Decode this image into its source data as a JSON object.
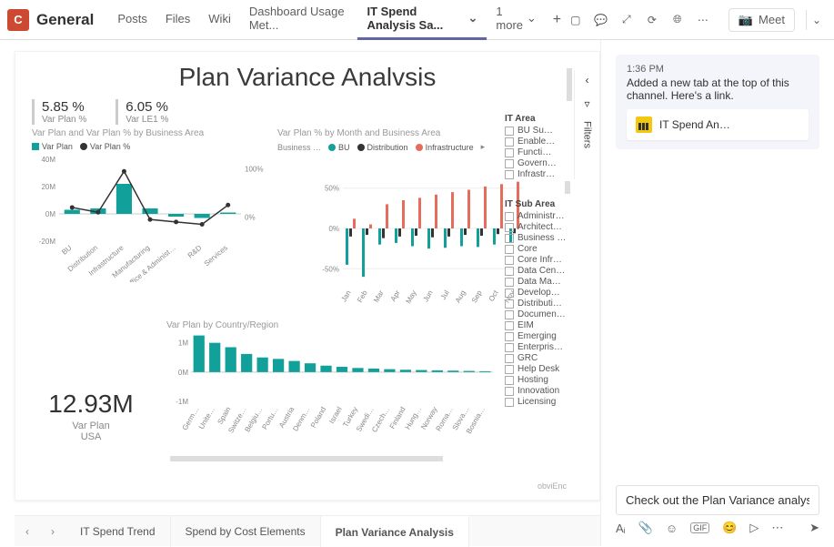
{
  "header": {
    "team_initial": "C",
    "channel": "General",
    "tabs": [
      "Posts",
      "Files",
      "Wiki",
      "Dashboard Usage Met...",
      "IT Spend Analysis Sa..."
    ],
    "active_tab_index": 4,
    "more_label": "1 more",
    "meet_label": "Meet"
  },
  "report": {
    "title": "Plan Variance Analvsis",
    "filters_label": "Filters",
    "kpis": [
      {
        "value": "5.85 %",
        "label": "Var Plan %"
      },
      {
        "value": "6.05 %",
        "label": "Var LE1 %"
      }
    ],
    "chart1": {
      "title": "Var Plan and Var Plan % by Business Area",
      "legend": [
        {
          "label": "Var Plan",
          "color": "#12a19a",
          "shape": "square"
        },
        {
          "label": "Var Plan %",
          "color": "#333333",
          "shape": "circle"
        }
      ],
      "y_left_ticks": [
        "40M",
        "20M",
        "0M",
        "-20M"
      ],
      "y_right_ticks": [
        "100%",
        "0%"
      ],
      "y_left_range": [
        -20,
        40
      ],
      "y_right_range": [
        -50,
        120
      ],
      "categories": [
        "BU",
        "Distribution",
        "Infrastructure",
        "Manufacturing",
        "Office & Administ…",
        "R&D",
        "Services"
      ],
      "bars": [
        3,
        4,
        22,
        4,
        -2,
        -3,
        1
      ],
      "line_pct": [
        20,
        10,
        95,
        -5,
        -10,
        -15,
        25
      ],
      "bar_color": "#12a19a",
      "line_color": "#333333"
    },
    "chart2": {
      "title": "Var Plan % by Month and Business Area",
      "legend_label": "Business …",
      "legend": [
        {
          "label": "BU",
          "color": "#12a19a"
        },
        {
          "label": "Distribution",
          "color": "#333333"
        },
        {
          "label": "Infrastructure",
          "color": "#e66c5c"
        }
      ],
      "y_ticks": [
        "50%",
        "0%",
        "-50%"
      ],
      "y_range": [
        -70,
        70
      ],
      "months": [
        "Jan",
        "Feb",
        "Mar",
        "Apr",
        "May",
        "Jun",
        "Jul",
        "Aug",
        "Sep",
        "Oct",
        "Nov"
      ],
      "series_bu": [
        -45,
        -60,
        -20,
        -18,
        -22,
        -25,
        -24,
        -22,
        -23,
        -20,
        -18
      ],
      "series_dist": [
        -10,
        -8,
        -12,
        -10,
        -9,
        -11,
        -10,
        -8,
        -9,
        -7,
        -6
      ],
      "series_infra": [
        12,
        5,
        30,
        35,
        38,
        42,
        45,
        48,
        52,
        55,
        58
      ],
      "bar_group_width": 4
    },
    "slicers": {
      "area_title": "IT Area",
      "areas": [
        "BU Su…",
        "Enable…",
        "Functi…",
        "Govern…",
        "Infrastr…"
      ],
      "sub_title": "IT Sub Area",
      "subs": [
        "Administr…",
        "Architect…",
        "Business …",
        "Core",
        "Core Infr…",
        "Data Cen…",
        "Data Ma…",
        "Develop…",
        "Distributi…",
        "Documen…",
        "EIM",
        "Emerging",
        "Enterpris…",
        "GRC",
        "Help Desk",
        "Hosting",
        "Innovation",
        "Licensing"
      ]
    },
    "bignum": {
      "value": "12.93M",
      "label": "Var Plan",
      "sub": "USA"
    },
    "chart3": {
      "title": "Var Plan by Country/Region",
      "y_ticks": [
        "1M",
        "0M",
        "-1M"
      ],
      "y_range": [
        -1,
        1.3
      ],
      "categories": [
        "Germ…",
        "Unite…",
        "Spain",
        "Switze…",
        "Belgiu…",
        "Portu…",
        "Austria",
        "Denm…",
        "Poland",
        "Israel",
        "Turkey",
        "Swedi…",
        "Czech…",
        "Finland",
        "Hung…",
        "Norway",
        "Roma…",
        "Slova…",
        "Bosnia…"
      ],
      "values": [
        1.25,
        1.0,
        0.85,
        0.62,
        0.5,
        0.45,
        0.38,
        0.3,
        0.22,
        0.18,
        0.14,
        0.12,
        0.1,
        0.08,
        0.07,
        0.06,
        0.05,
        0.04,
        0.03
      ],
      "bar_color": "#12a19a"
    },
    "bottom_tabs": [
      "IT Spend Trend",
      "Spend by Cost Elements",
      "Plan Variance Analysis"
    ],
    "bottom_active": 2,
    "watermark": "obviEnc"
  },
  "chat": {
    "time": "1:36 PM",
    "text": "Added a new tab at the top of this channel. Here's a link.",
    "card_label": "IT Spend An…",
    "compose_value": "Check out the Plan Variance analysis"
  },
  "colors": {
    "teal": "#12a19a",
    "red": "#e66c5c",
    "black": "#333333",
    "grid": "#e6e6e6"
  }
}
